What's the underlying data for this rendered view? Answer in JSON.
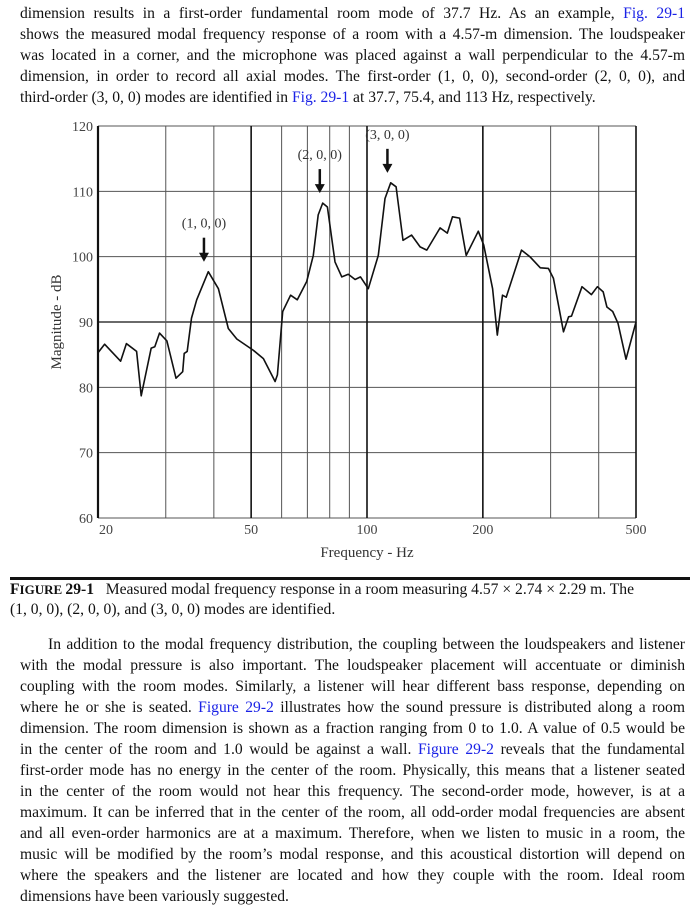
{
  "top_paragraph": {
    "lines": [
      [
        {
          "text": "dimension results in a first-order fundamental room mode of 37.7 Hz. As an example, "
        },
        {
          "text": "Fig. 29-1",
          "link": true
        }
      ],
      [
        {
          "text": "shows the measured modal frequency response of a room with a 4.57-m dimension. The loudspeaker"
        }
      ],
      [
        {
          "text": "was located in a corner, and the microphone was placed against a wall perpendicular to the 4.57-m"
        }
      ],
      [
        {
          "text": "dimension, in order to record all axial modes. The first-order (1, 0, 0), second-order (2, 0, 0), and"
        }
      ],
      [
        {
          "text": "third-order (3, 0, 0) modes are identified in "
        },
        {
          "text": "Fig. 29-1",
          "link": true
        },
        {
          "text": " at 37.7, 75.4, and 113 Hz, respectively."
        }
      ]
    ]
  },
  "chart_data": {
    "type": "line",
    "title": "",
    "xlabel": "Frequency - Hz",
    "ylabel": "Magnitude - dB",
    "x_scale": "log",
    "xlim": [
      20,
      500
    ],
    "ylim": [
      60,
      120
    ],
    "grid": true,
    "x_tick_labels": [
      "20",
      "50",
      "100",
      "200",
      "500"
    ],
    "x_ticks": [
      20,
      50,
      100,
      200,
      500
    ],
    "x_minor_gridlines": [
      30,
      40,
      60,
      70,
      80,
      90,
      300,
      400
    ],
    "y_ticks": [
      60,
      70,
      80,
      90,
      100,
      110,
      120
    ],
    "y_tick_labels": [
      "60",
      "70",
      "80",
      "90",
      "100",
      "110",
      "120"
    ],
    "series": [
      {
        "x": [
          20,
          20.8,
          22.9,
          23.7,
          25.2,
          25.9,
          27.5,
          28.1,
          28.9,
          30.2,
          31.9,
          33.2,
          33.5,
          34.1,
          35.0,
          36.1,
          38.7,
          41.1,
          43.6,
          45.9,
          50.6,
          53.8,
          57.7,
          58.5,
          60.4,
          63.3,
          65.9,
          69.7,
          72.5,
          74.7,
          76.7,
          78.9,
          82.6,
          86.0,
          89.4,
          93.1,
          96.2,
          100.8,
          107,
          111.4,
          115.2,
          119,
          124,
          130.6,
          137.4,
          143,
          154.9,
          161.7,
          166.8,
          174,
          181,
          194.6,
          201,
          212,
          218,
          225,
          230,
          252,
          265,
          282,
          296,
          305,
          324,
          334,
          340,
          362,
          383,
          397,
          411,
          420,
          435,
          449,
          471,
          500
        ],
        "y": [
          85.3,
          86.6,
          84.0,
          86.7,
          85.5,
          78.7,
          86.0,
          86.2,
          88.3,
          87.1,
          81.4,
          82.4,
          85.2,
          85.5,
          90.6,
          93.4,
          97.7,
          95.1,
          89.0,
          87.4,
          85.7,
          84.4,
          80.9,
          81.9,
          91.6,
          94.1,
          93.4,
          96.2,
          100.2,
          106.4,
          108.2,
          107.6,
          99.2,
          96.9,
          97.3,
          96.5,
          96.9,
          95.1,
          100.2,
          108.9,
          111.3,
          110.7,
          102.5,
          103.3,
          101.5,
          101.0,
          104.4,
          103.6,
          106.1,
          105.9,
          100.2,
          103.9,
          101.8,
          95.1,
          88.0,
          94.1,
          93.8,
          101.0,
          100.0,
          98.3,
          98.2,
          96.7,
          88.5,
          90.8,
          90.9,
          95.4,
          94.2,
          95.4,
          94.6,
          92.3,
          91.6,
          89.8,
          84.3,
          90.0
        ],
        "color": "#111111"
      }
    ],
    "annotations": [
      {
        "text": "(1, 0, 0)",
        "x": 37.7,
        "arrow": "down"
      },
      {
        "text": "(2, 0, 0)",
        "x": 75.4,
        "arrow": "down"
      },
      {
        "text": "(3, 0, 0)",
        "x": 113,
        "arrow": "down"
      }
    ]
  },
  "caption": {
    "label_first": "F",
    "label_rest": "IGURE",
    "label_number": "29-1",
    "text_line1": "Measured modal frequency response in a room measuring 4.57 × 2.74 × 2.29 m. The",
    "text_line2": "(1, 0, 0), (2, 0, 0), and (3, 0, 0) modes are identified."
  },
  "bottom_paragraph": {
    "lines": [
      [
        {
          "text": "In addition to the modal frequency distribution, the coupling between the loudspeakers and listener"
        }
      ],
      [
        {
          "text": "with the modal pressure is also important. The loudspeaker placement will accentuate or diminish"
        }
      ],
      [
        {
          "text": "coupling with the room modes. Similarly, a listener will hear different bass response, depending on"
        }
      ],
      [
        {
          "text": "where he or she is seated. "
        },
        {
          "text": "Figure 29-2",
          "link": true
        },
        {
          "text": " illustrates how the sound pressure is distributed along a room"
        }
      ],
      [
        {
          "text": "dimension. The room dimension is shown as a fraction ranging from 0 to 1.0. A value of 0.5 would be"
        }
      ],
      [
        {
          "text": "in the center of the room and 1.0 would be against a wall. "
        },
        {
          "text": "Figure 29-2",
          "link": true
        },
        {
          "text": " reveals that the fundamental"
        }
      ],
      [
        {
          "text": "first-order mode has no energy in the center of the room. Physically, this means that a listener seated"
        }
      ],
      [
        {
          "text": "in the center of the room would not hear this frequency. The second-order mode, however, is at a"
        }
      ],
      [
        {
          "text": "maximum. It can be inferred that in the center of the room, all odd-order modal frequencies are absent"
        }
      ],
      [
        {
          "text": "and all even-order harmonics are at a maximum. Therefore, when we listen to music in a room, the"
        }
      ],
      [
        {
          "text": "music will be modified by the room’s modal response, and this acoustical distortion will depend on"
        }
      ],
      [
        {
          "text": "where the speakers and the listener are located and how they couple with the room. Ideal room"
        }
      ],
      [
        {
          "text": "dimensions have been variously suggested."
        }
      ]
    ]
  },
  "colors": {
    "link": "#1a22e6",
    "text": "#111111"
  }
}
